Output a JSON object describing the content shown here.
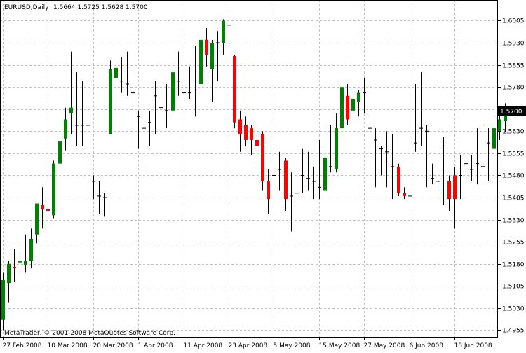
{
  "chart_data": {
    "type": "candlestick",
    "symbol_label": "EURUSD,Daily",
    "ohlc_label": "1.5664 1.5725 1.5628 1.5700",
    "copyright": "MetaTrader, © 2001-2008 MetaQuotes Software Corp.",
    "current_price_label": "1.5700",
    "current_price": 1.57,
    "ylim": [
      1.493,
      1.6075
    ],
    "y_ticks": [
      "1.6005",
      "1.5930",
      "1.5855",
      "1.5780",
      "1.5705",
      "1.5630",
      "1.5555",
      "1.5480",
      "1.5405",
      "1.5330",
      "1.5255",
      "1.5180",
      "1.5105",
      "1.5030",
      "1.4955"
    ],
    "x_ticks": [
      {
        "label": "27 Feb 2008",
        "index": 0
      },
      {
        "label": "10 Mar 2008",
        "index": 8
      },
      {
        "label": "20 Mar 2008",
        "index": 16
      },
      {
        "label": "1 Apr 2008",
        "index": 24
      },
      {
        "label": "11 Apr 2008",
        "index": 32
      },
      {
        "label": "23 Apr 2008",
        "index": 40
      },
      {
        "label": "5 May 2008",
        "index": 48
      },
      {
        "label": "15 May 2008",
        "index": 56
      },
      {
        "label": "27 May 2008",
        "index": 64
      },
      {
        "label": "6 Jun 2008",
        "index": 72
      },
      {
        "label": "18 Jun 2008",
        "index": 80
      }
    ],
    "colors": {
      "bull": "#008000",
      "bear": "#ff0000",
      "doji": "#000000",
      "grid": "#c0c0c0",
      "axis": "#000000"
    },
    "grid": true,
    "candles": [
      {
        "o": 1.499,
        "h": 1.515,
        "l": 1.4955,
        "c": 1.5125
      },
      {
        "o": 1.5115,
        "h": 1.519,
        "l": 1.505,
        "c": 1.518
      },
      {
        "o": 1.517,
        "h": 1.523,
        "l": 1.512,
        "c": 1.5165
      },
      {
        "o": 1.5185,
        "h": 1.5205,
        "l": 1.516,
        "c": 1.519
      },
      {
        "o": 1.5175,
        "h": 1.528,
        "l": 1.515,
        "c": 1.519
      },
      {
        "o": 1.519,
        "h": 1.53,
        "l": 1.5165,
        "c": 1.5265
      },
      {
        "o": 1.528,
        "h": 1.538,
        "l": 1.525,
        "c": 1.5385
      },
      {
        "o": 1.538,
        "h": 1.544,
        "l": 1.53,
        "c": 1.5365
      },
      {
        "o": 1.5365,
        "h": 1.54,
        "l": 1.531,
        "c": 1.536
      },
      {
        "o": 1.5345,
        "h": 1.553,
        "l": 1.5335,
        "c": 1.552
      },
      {
        "o": 1.552,
        "h": 1.5625,
        "l": 1.551,
        "c": 1.5595
      },
      {
        "o": 1.5605,
        "h": 1.571,
        "l": 1.5565,
        "c": 1.567
      },
      {
        "o": 1.569,
        "h": 1.59,
        "l": 1.562,
        "c": 1.571
      },
      {
        "o": 1.565,
        "h": 1.583,
        "l": 1.558,
        "c": 1.565
      },
      {
        "o": 1.565,
        "h": 1.58,
        "l": 1.558,
        "c": 1.565
      },
      {
        "o": 1.565,
        "h": 1.576,
        "l": 1.54,
        "c": 1.565
      },
      {
        "o": 1.546,
        "h": 1.548,
        "l": 1.54,
        "c": 1.546
      },
      {
        "o": 1.541,
        "h": 1.546,
        "l": 1.535,
        "c": 1.541
      },
      {
        "o": 1.5405,
        "h": 1.542,
        "l": 1.534,
        "c": 1.5405
      },
      {
        "o": 1.562,
        "h": 1.587,
        "l": 1.562,
        "c": 1.584
      },
      {
        "o": 1.581,
        "h": 1.586,
        "l": 1.569,
        "c": 1.5845
      },
      {
        "o": 1.58,
        "h": 1.588,
        "l": 1.576,
        "c": 1.58
      },
      {
        "o": 1.579,
        "h": 1.59,
        "l": 1.575,
        "c": 1.579
      },
      {
        "o": 1.576,
        "h": 1.578,
        "l": 1.557,
        "c": 1.576
      },
      {
        "o": 1.568,
        "h": 1.57,
        "l": 1.557,
        "c": 1.568
      },
      {
        "o": 1.564,
        "h": 1.569,
        "l": 1.551,
        "c": 1.564
      },
      {
        "o": 1.566,
        "h": 1.57,
        "l": 1.558,
        "c": 1.566
      },
      {
        "o": 1.575,
        "h": 1.58,
        "l": 1.562,
        "c": 1.575
      },
      {
        "o": 1.571,
        "h": 1.576,
        "l": 1.563,
        "c": 1.571
      },
      {
        "o": 1.57,
        "h": 1.579,
        "l": 1.564,
        "c": 1.57
      },
      {
        "o": 1.57,
        "h": 1.585,
        "l": 1.569,
        "c": 1.583
      },
      {
        "o": 1.58,
        "h": 1.59,
        "l": 1.575,
        "c": 1.58
      },
      {
        "o": 1.576,
        "h": 1.586,
        "l": 1.57,
        "c": 1.576
      },
      {
        "o": 1.576,
        "h": 1.585,
        "l": 1.574,
        "c": 1.576
      },
      {
        "o": 1.577,
        "h": 1.592,
        "l": 1.568,
        "c": 1.577
      },
      {
        "o": 1.579,
        "h": 1.596,
        "l": 1.577,
        "c": 1.594
      },
      {
        "o": 1.594,
        "h": 1.598,
        "l": 1.585,
        "c": 1.589
      },
      {
        "o": 1.584,
        "h": 1.594,
        "l": 1.573,
        "c": 1.593
      },
      {
        "o": 1.593,
        "h": 1.597,
        "l": 1.58,
        "c": 1.593
      },
      {
        "o": 1.593,
        "h": 1.601,
        "l": 1.589,
        "c": 1.6005
      },
      {
        "o": 1.599,
        "h": 1.6,
        "l": 1.576,
        "c": 1.599
      },
      {
        "o": 1.5885,
        "h": 1.589,
        "l": 1.564,
        "c": 1.566
      },
      {
        "o": 1.567,
        "h": 1.57,
        "l": 1.556,
        "c": 1.562
      },
      {
        "o": 1.565,
        "h": 1.568,
        "l": 1.558,
        "c": 1.56
      },
      {
        "o": 1.564,
        "h": 1.565,
        "l": 1.555,
        "c": 1.56
      },
      {
        "o": 1.56,
        "h": 1.564,
        "l": 1.552,
        "c": 1.558
      },
      {
        "o": 1.562,
        "h": 1.563,
        "l": 1.543,
        "c": 1.546
      },
      {
        "o": 1.546,
        "h": 1.55,
        "l": 1.535,
        "c": 1.54
      },
      {
        "o": 1.548,
        "h": 1.554,
        "l": 1.54,
        "c": 1.548
      },
      {
        "o": 1.55,
        "h": 1.556,
        "l": 1.543,
        "c": 1.55
      },
      {
        "o": 1.553,
        "h": 1.554,
        "l": 1.536,
        "c": 1.54
      },
      {
        "o": 1.541,
        "h": 1.549,
        "l": 1.529,
        "c": 1.541
      },
      {
        "o": 1.542,
        "h": 1.552,
        "l": 1.538,
        "c": 1.542
      },
      {
        "o": 1.548,
        "h": 1.557,
        "l": 1.542,
        "c": 1.548
      },
      {
        "o": 1.547,
        "h": 1.556,
        "l": 1.543,
        "c": 1.547
      },
      {
        "o": 1.546,
        "h": 1.551,
        "l": 1.54,
        "c": 1.546
      },
      {
        "o": 1.544,
        "h": 1.56,
        "l": 1.54,
        "c": 1.544
      },
      {
        "o": 1.543,
        "h": 1.557,
        "l": 1.543,
        "c": 1.554
      },
      {
        "o": 1.551,
        "h": 1.565,
        "l": 1.549,
        "c": 1.551
      },
      {
        "o": 1.55,
        "h": 1.569,
        "l": 1.549,
        "c": 1.564
      },
      {
        "o": 1.564,
        "h": 1.579,
        "l": 1.561,
        "c": 1.578
      },
      {
        "o": 1.575,
        "h": 1.579,
        "l": 1.565,
        "c": 1.567
      },
      {
        "o": 1.57,
        "h": 1.58,
        "l": 1.568,
        "c": 1.574
      },
      {
        "o": 1.573,
        "h": 1.577,
        "l": 1.568,
        "c": 1.576
      },
      {
        "o": 1.576,
        "h": 1.581,
        "l": 1.569,
        "c": 1.576
      },
      {
        "o": 1.564,
        "h": 1.568,
        "l": 1.557,
        "c": 1.564
      },
      {
        "o": 1.56,
        "h": 1.564,
        "l": 1.544,
        "c": 1.56
      },
      {
        "o": 1.557,
        "h": 1.558,
        "l": 1.548,
        "c": 1.557
      },
      {
        "o": 1.556,
        "h": 1.563,
        "l": 1.544,
        "c": 1.556
      },
      {
        "o": 1.551,
        "h": 1.562,
        "l": 1.54,
        "c": 1.551
      },
      {
        "o": 1.551,
        "h": 1.552,
        "l": 1.541,
        "c": 1.542
      },
      {
        "o": 1.542,
        "h": 1.544,
        "l": 1.54,
        "c": 1.541
      },
      {
        "o": 1.541,
        "h": 1.543,
        "l": 1.536,
        "c": 1.541
      },
      {
        "o": 1.559,
        "h": 1.579,
        "l": 1.556,
        "c": 1.559
      },
      {
        "o": 1.564,
        "h": 1.583,
        "l": 1.558,
        "c": 1.564
      },
      {
        "o": 1.563,
        "h": 1.565,
        "l": 1.544,
        "c": 1.563
      },
      {
        "o": 1.547,
        "h": 1.552,
        "l": 1.545,
        "c": 1.547
      },
      {
        "o": 1.546,
        "h": 1.562,
        "l": 1.544,
        "c": 1.546
      },
      {
        "o": 1.558,
        "h": 1.561,
        "l": 1.538,
        "c": 1.558
      },
      {
        "o": 1.546,
        "h": 1.548,
        "l": 1.536,
        "c": 1.54
      },
      {
        "o": 1.548,
        "h": 1.551,
        "l": 1.53,
        "c": 1.54
      },
      {
        "o": 1.548,
        "h": 1.555,
        "l": 1.54,
        "c": 1.548
      },
      {
        "o": 1.552,
        "h": 1.562,
        "l": 1.546,
        "c": 1.552
      },
      {
        "o": 1.55,
        "h": 1.555,
        "l": 1.546,
        "c": 1.55
      },
      {
        "o": 1.552,
        "h": 1.564,
        "l": 1.545,
        "c": 1.552
      },
      {
        "o": 1.551,
        "h": 1.565,
        "l": 1.546,
        "c": 1.551
      },
      {
        "o": 1.559,
        "h": 1.564,
        "l": 1.546,
        "c": 1.559
      },
      {
        "o": 1.557,
        "h": 1.568,
        "l": 1.553,
        "c": 1.564
      },
      {
        "o": 1.563,
        "h": 1.57,
        "l": 1.56,
        "c": 1.567
      },
      {
        "o": 1.5664,
        "h": 1.5725,
        "l": 1.5628,
        "c": 1.57
      }
    ]
  }
}
